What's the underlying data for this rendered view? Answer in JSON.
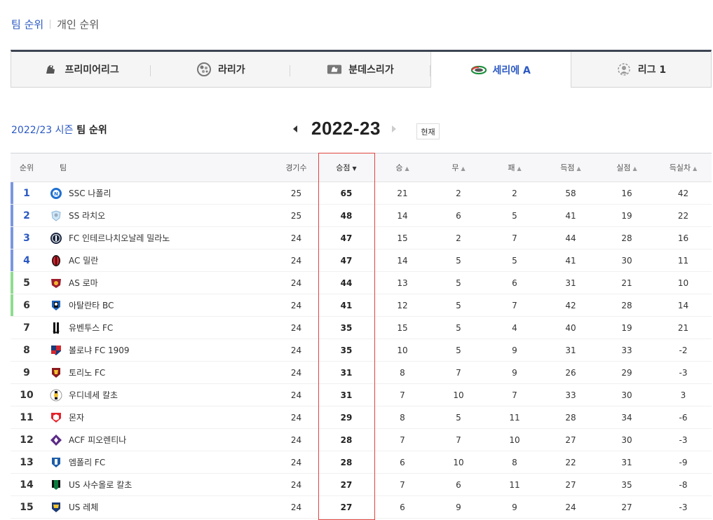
{
  "top_tabs": [
    {
      "label": "팀 순위",
      "active": true
    },
    {
      "label": "개인 순위",
      "active": false
    }
  ],
  "leagues": [
    {
      "label": "프리미어리그",
      "icon": "premier-league-icon"
    },
    {
      "label": "라리가",
      "icon": "laliga-icon"
    },
    {
      "label": "분데스리가",
      "icon": "bundesliga-icon"
    },
    {
      "label": "세리에 A",
      "icon": "serie-a-icon",
      "active": true
    },
    {
      "label": "리그 1",
      "icon": "ligue-1-icon"
    }
  ],
  "season": {
    "title_prefix": "2022/23 시즌",
    "title_suffix": "팀 순위",
    "year": "2022-23",
    "now_label": "현재"
  },
  "columns": {
    "rank": "순위",
    "team": "팀",
    "played": "경기수",
    "points": "승점",
    "won": "승",
    "drawn": "무",
    "lost": "패",
    "goals_for": "득점",
    "goals_against": "실점",
    "goal_diff": "득실차"
  },
  "colors": {
    "accent": "#2b59c3",
    "ucl": "#7b97de",
    "uel": "#8fdc90",
    "highlight": "#e0443f"
  },
  "rows": [
    {
      "rank": "1",
      "team": "SSC 나폴리",
      "crest": "napoli-crest",
      "played": "25",
      "points": "65",
      "won": "21",
      "drawn": "2",
      "lost": "2",
      "gf": "58",
      "ga": "16",
      "gd": "42",
      "zone": "ucl"
    },
    {
      "rank": "2",
      "team": "SS 라치오",
      "crest": "lazio-crest",
      "played": "25",
      "points": "48",
      "won": "14",
      "drawn": "6",
      "lost": "5",
      "gf": "41",
      "ga": "19",
      "gd": "22",
      "zone": "ucl"
    },
    {
      "rank": "3",
      "team": "FC 인테르나치오날레 밀라노",
      "crest": "inter-crest",
      "played": "24",
      "points": "47",
      "won": "15",
      "drawn": "2",
      "lost": "7",
      "gf": "44",
      "ga": "28",
      "gd": "16",
      "zone": "ucl"
    },
    {
      "rank": "4",
      "team": "AC 밀란",
      "crest": "milan-crest",
      "played": "24",
      "points": "47",
      "won": "14",
      "drawn": "5",
      "lost": "5",
      "gf": "41",
      "ga": "30",
      "gd": "11",
      "zone": "ucl"
    },
    {
      "rank": "5",
      "team": "AS 로마",
      "crest": "roma-crest",
      "played": "24",
      "points": "44",
      "won": "13",
      "drawn": "5",
      "lost": "6",
      "gf": "31",
      "ga": "21",
      "gd": "10",
      "zone": "uel"
    },
    {
      "rank": "6",
      "team": "아탈란타 BC",
      "crest": "atalanta-crest",
      "played": "24",
      "points": "41",
      "won": "12",
      "drawn": "5",
      "lost": "7",
      "gf": "42",
      "ga": "28",
      "gd": "14",
      "zone": "uel"
    },
    {
      "rank": "7",
      "team": "유벤투스 FC",
      "crest": "juventus-crest",
      "played": "24",
      "points": "35",
      "won": "15",
      "drawn": "5",
      "lost": "4",
      "gf": "40",
      "ga": "19",
      "gd": "21",
      "zone": ""
    },
    {
      "rank": "8",
      "team": "볼로냐 FC 1909",
      "crest": "bologna-crest",
      "played": "24",
      "points": "35",
      "won": "10",
      "drawn": "5",
      "lost": "9",
      "gf": "31",
      "ga": "33",
      "gd": "-2",
      "zone": ""
    },
    {
      "rank": "9",
      "team": "토리노 FC",
      "crest": "torino-crest",
      "played": "24",
      "points": "31",
      "won": "8",
      "drawn": "7",
      "lost": "9",
      "gf": "26",
      "ga": "29",
      "gd": "-3",
      "zone": ""
    },
    {
      "rank": "10",
      "team": "우디네세 칼초",
      "crest": "udinese-crest",
      "played": "24",
      "points": "31",
      "won": "7",
      "drawn": "10",
      "lost": "7",
      "gf": "33",
      "ga": "30",
      "gd": "3",
      "zone": ""
    },
    {
      "rank": "11",
      "team": "몬자",
      "crest": "monza-crest",
      "played": "24",
      "points": "29",
      "won": "8",
      "drawn": "5",
      "lost": "11",
      "gf": "28",
      "ga": "34",
      "gd": "-6",
      "zone": ""
    },
    {
      "rank": "12",
      "team": "ACF 피오렌티나",
      "crest": "fiorentina-crest",
      "played": "24",
      "points": "28",
      "won": "7",
      "drawn": "7",
      "lost": "10",
      "gf": "27",
      "ga": "30",
      "gd": "-3",
      "zone": ""
    },
    {
      "rank": "13",
      "team": "엠폴리 FC",
      "crest": "empoli-crest",
      "played": "24",
      "points": "28",
      "won": "6",
      "drawn": "10",
      "lost": "8",
      "gf": "22",
      "ga": "31",
      "gd": "-9",
      "zone": ""
    },
    {
      "rank": "14",
      "team": "US 사수올로 칼초",
      "crest": "sassuolo-crest",
      "played": "24",
      "points": "27",
      "won": "7",
      "drawn": "6",
      "lost": "11",
      "gf": "27",
      "ga": "35",
      "gd": "-8",
      "zone": ""
    },
    {
      "rank": "15",
      "team": "US 레체",
      "crest": "lecce-crest",
      "played": "24",
      "points": "27",
      "won": "6",
      "drawn": "9",
      "lost": "9",
      "gf": "24",
      "ga": "27",
      "gd": "-3",
      "zone": ""
    }
  ]
}
